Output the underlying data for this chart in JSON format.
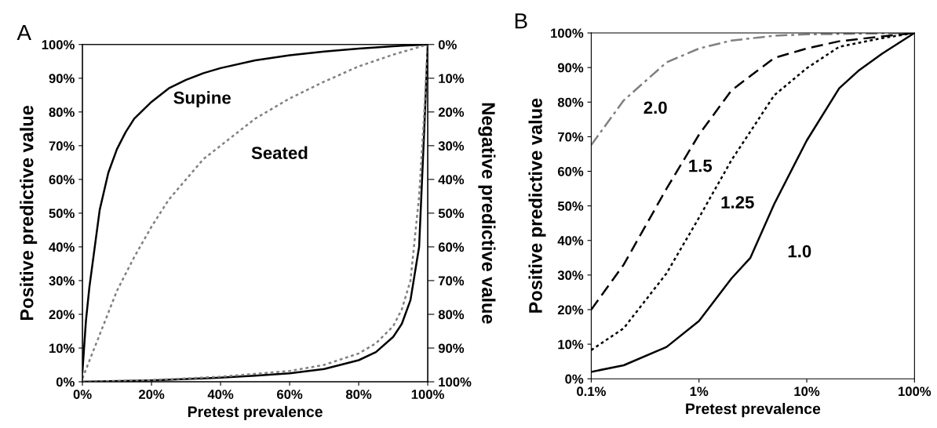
{
  "chart_data": [
    {
      "type": "line",
      "xlabel": "Pretest prevalence",
      "ylabel": "Positive predictive value",
      "y2label": "Negative predictive value",
      "annotations": [
        "A"
      ],
      "xlim": [
        0,
        100
      ],
      "ylim": [
        0,
        100
      ],
      "y2lim": [
        100,
        0
      ],
      "xticks": [
        {
          "value": 0,
          "label": "0%"
        },
        {
          "value": 20,
          "label": "20%"
        },
        {
          "value": 40,
          "label": "40%"
        },
        {
          "value": 60,
          "label": "60%"
        },
        {
          "value": 80,
          "label": "80%"
        },
        {
          "value": 100,
          "label": "100%"
        }
      ],
      "yticks": [
        {
          "value": 0,
          "label": "0%"
        },
        {
          "value": 10,
          "label": "10%"
        },
        {
          "value": 20,
          "label": "20%"
        },
        {
          "value": 30,
          "label": "30%"
        },
        {
          "value": 40,
          "label": "40%"
        },
        {
          "value": 50,
          "label": "50%"
        },
        {
          "value": 60,
          "label": "60%"
        },
        {
          "value": 70,
          "label": "70%"
        },
        {
          "value": 80,
          "label": "80%"
        },
        {
          "value": 90,
          "label": "90%"
        },
        {
          "value": 100,
          "label": "100%"
        }
      ],
      "y2ticks": [
        {
          "value": 0,
          "label": "0%"
        },
        {
          "value": 10,
          "label": "10%"
        },
        {
          "value": 20,
          "label": "20%"
        },
        {
          "value": 30,
          "label": "30%"
        },
        {
          "value": 40,
          "label": "40%"
        },
        {
          "value": 50,
          "label": "50%"
        },
        {
          "value": 60,
          "label": "60%"
        },
        {
          "value": 70,
          "label": "70%"
        },
        {
          "value": 80,
          "label": "80%"
        },
        {
          "value": 90,
          "label": "90%"
        },
        {
          "value": 100,
          "label": "100%"
        }
      ],
      "grid": false,
      "series": [
        {
          "name": "Supine",
          "color": "#000000",
          "line_style": "solid",
          "x": [
            0,
            1,
            2,
            5,
            7.5,
            10,
            12.5,
            15,
            20,
            25,
            30,
            35,
            40,
            50,
            60,
            70,
            80,
            90,
            100
          ],
          "values": [
            3,
            18,
            28,
            51,
            62,
            69,
            74,
            78,
            83,
            87,
            89.5,
            91.5,
            93,
            95.3,
            96.8,
            97.9,
            98.8,
            99.5,
            100
          ]
        },
        {
          "name": "Seated",
          "color": "#808080",
          "line_style": "dotted",
          "x": [
            0,
            5,
            10,
            15,
            20,
            25,
            30,
            35,
            40,
            50,
            60,
            70,
            80,
            90,
            100
          ],
          "values": [
            1,
            14,
            27,
            37,
            46,
            54,
            60,
            66,
            70,
            78,
            84,
            89,
            93.5,
            97,
            100
          ]
        },
        {
          "color": "#000000",
          "line_style": "solid",
          "axis": "y2",
          "x": [
            0,
            20,
            40,
            50,
            60,
            70,
            80,
            85,
            90,
            92.5,
            95,
            97.5,
            99,
            100
          ],
          "values": [
            100,
            99.6,
            98.8,
            98.2,
            97.5,
            96.2,
            93.6,
            91.2,
            86.7,
            82.8,
            75.8,
            60,
            25,
            0
          ]
        },
        {
          "color": "#808080",
          "line_style": "dotted",
          "axis": "y2",
          "x": [
            0,
            20,
            40,
            60,
            70,
            80,
            85,
            90,
            92.5,
            95,
            97.5,
            99,
            100
          ],
          "values": [
            100,
            99.5,
            98.5,
            96.8,
            95,
            91.6,
            88.6,
            83.5,
            78.5,
            70,
            45,
            20,
            0
          ]
        }
      ]
    },
    {
      "type": "line",
      "xlabel": "Pretest prevalence",
      "ylabel": "Positive predictive value",
      "log": "x",
      "annotations": [
        "B"
      ],
      "xlim": [
        0.1,
        100
      ],
      "ylim": [
        0,
        100
      ],
      "xticks": [
        {
          "value": 0.1,
          "label": "0.1%"
        },
        {
          "value": 1,
          "label": "1%"
        },
        {
          "value": 10,
          "label": "10%"
        },
        {
          "value": 100,
          "label": "100%"
        }
      ],
      "yticks": [
        {
          "value": 0,
          "label": "0%"
        },
        {
          "value": 10,
          "label": "10%"
        },
        {
          "value": 20,
          "label": "20%"
        },
        {
          "value": 30,
          "label": "30%"
        },
        {
          "value": 40,
          "label": "40%"
        },
        {
          "value": 50,
          "label": "50%"
        },
        {
          "value": 60,
          "label": "60%"
        },
        {
          "value": 70,
          "label": "70%"
        },
        {
          "value": 80,
          "label": "80%"
        },
        {
          "value": 90,
          "label": "90%"
        },
        {
          "value": 100,
          "label": "100%"
        }
      ],
      "grid": false,
      "series": [
        {
          "name": "2.0",
          "color": "#808080",
          "line_style": "dashdot",
          "x": [
            0.1,
            0.2,
            0.5,
            1,
            2,
            5,
            10,
            100
          ],
          "values": [
            67.6,
            80.5,
            91.5,
            95.5,
            97.8,
            99.2,
            99.6,
            100
          ]
        },
        {
          "name": "1.5",
          "color": "#000000",
          "line_style": "dashed",
          "x": [
            0.1,
            0.2,
            0.5,
            1,
            2,
            5,
            10,
            20,
            50,
            100
          ],
          "values": [
            20,
            33,
            55,
            70.6,
            83.4,
            92.8,
            95.5,
            97.6,
            99,
            100
          ]
        },
        {
          "name": "1.25",
          "color": "#000000",
          "line_style": "dotted",
          "x": [
            0.1,
            0.2,
            0.5,
            1,
            2,
            5,
            10,
            20,
            50,
            100
          ],
          "values": [
            8.3,
            14.6,
            30.5,
            46.6,
            63.2,
            82,
            89.8,
            96,
            98.5,
            100
          ]
        },
        {
          "name": "1.0",
          "color": "#000000",
          "line_style": "solid",
          "x": [
            0.1,
            0.2,
            0.5,
            1,
            2,
            3,
            5,
            10,
            20,
            30,
            50,
            100
          ],
          "values": [
            2,
            3.9,
            9.2,
            16.7,
            29,
            35,
            50.6,
            68.9,
            84,
            89,
            94,
            100
          ]
        }
      ]
    }
  ]
}
